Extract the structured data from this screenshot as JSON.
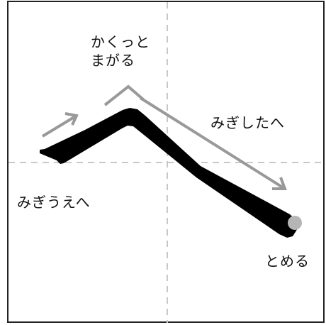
{
  "labels": {
    "turn_line1": "かくっと",
    "turn_line2": "まがる",
    "down_right": "みぎしたへ",
    "up_right": "みぎうえへ",
    "stop": "とめる"
  },
  "colors": {
    "stroke": "#000000",
    "arrow": "#999999",
    "guide": "#c8c8c8",
    "end_dot": "#b5b5b5",
    "frame": "#222222"
  }
}
